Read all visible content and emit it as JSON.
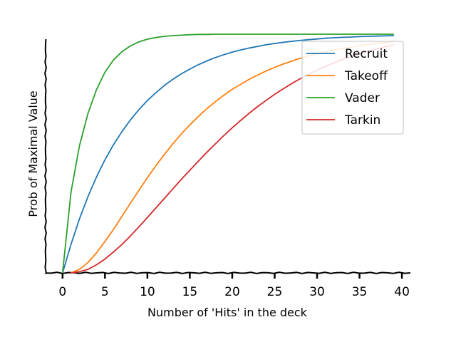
{
  "chart_data": {
    "type": "line",
    "title": "",
    "xlabel": "Number of 'Hits' in the deck",
    "ylabel": "Prob of Maximal Value",
    "xlim": [
      -2,
      41
    ],
    "ylim": [
      0,
      1
    ],
    "xticks": [
      0,
      5,
      10,
      15,
      20,
      25,
      30,
      35,
      40
    ],
    "grid": false,
    "legend_position": "top-right",
    "series": [
      {
        "name": "Recruit",
        "color": "#1f77b4",
        "x": [
          0,
          1,
          2,
          3,
          4,
          5,
          6,
          7,
          8,
          9,
          10,
          11,
          12,
          13,
          14,
          15,
          16,
          17,
          18,
          19,
          20,
          21,
          22,
          23,
          24,
          25,
          26,
          27,
          28,
          29,
          30,
          31,
          32,
          33,
          34,
          35,
          36,
          37,
          38,
          39
        ],
        "y": [
          0,
          0.12,
          0.227,
          0.32,
          0.402,
          0.474,
          0.537,
          0.592,
          0.641,
          0.684,
          0.722,
          0.755,
          0.785,
          0.811,
          0.834,
          0.854,
          0.872,
          0.888,
          0.902,
          0.914,
          0.925,
          0.934,
          0.942,
          0.949,
          0.956,
          0.961,
          0.966,
          0.97,
          0.974,
          0.977,
          0.98,
          0.983,
          0.985,
          0.987,
          0.988,
          0.99,
          0.991,
          0.992,
          0.993,
          0.994
        ]
      },
      {
        "name": "Takeoff",
        "color": "#ff7f0e",
        "x": [
          1,
          2,
          3,
          4,
          5,
          6,
          7,
          8,
          9,
          10,
          11,
          12,
          13,
          14,
          15,
          16,
          17,
          18,
          19,
          20,
          21,
          22,
          23,
          24,
          25,
          26,
          27,
          28,
          29,
          30,
          31,
          32,
          33,
          34,
          35,
          36,
          37,
          38,
          39
        ],
        "y": [
          0,
          0.015,
          0.044,
          0.084,
          0.132,
          0.182,
          0.237,
          0.292,
          0.346,
          0.399,
          0.449,
          0.496,
          0.541,
          0.582,
          0.62,
          0.655,
          0.688,
          0.717,
          0.744,
          0.769,
          0.79,
          0.811,
          0.829,
          0.846,
          0.861,
          0.875,
          0.887,
          0.899,
          0.909,
          0.918,
          0.926,
          0.934,
          0.94,
          0.946,
          0.952,
          0.957,
          0.961,
          0.965,
          0.969
        ]
      },
      {
        "name": "Vader",
        "color": "#2ca02c",
        "x": [
          0,
          1,
          2,
          3,
          4,
          5,
          6,
          7,
          8,
          9,
          10,
          11,
          12,
          13,
          14,
          15,
          16,
          17,
          18,
          19,
          20,
          21,
          22,
          23,
          24,
          25,
          26,
          27,
          28,
          29,
          30,
          31,
          32,
          33,
          34,
          35,
          36,
          37,
          38,
          39
        ],
        "y": [
          0,
          0.34,
          0.534,
          0.669,
          0.768,
          0.841,
          0.892,
          0.927,
          0.951,
          0.968,
          0.979,
          0.986,
          0.991,
          0.994,
          0.996,
          0.998,
          0.999,
          0.999,
          1,
          1,
          1,
          1,
          1,
          1,
          1,
          1,
          1,
          1,
          1,
          1,
          1,
          1,
          1,
          1,
          1,
          1,
          1,
          1,
          1,
          1
        ]
      },
      {
        "name": "Tarkin",
        "color": "#d62728",
        "x": [
          1,
          2,
          3,
          4,
          5,
          6,
          7,
          8,
          9,
          10,
          11,
          12,
          13,
          14,
          15,
          16,
          17,
          18,
          19,
          20,
          21,
          22,
          23,
          24,
          25,
          26,
          27,
          28,
          29,
          30,
          31,
          32,
          33,
          34,
          35,
          36,
          37,
          38,
          39
        ],
        "y": [
          0,
          0.005,
          0.015,
          0.034,
          0.058,
          0.088,
          0.119,
          0.155,
          0.193,
          0.232,
          0.272,
          0.312,
          0.352,
          0.392,
          0.43,
          0.468,
          0.505,
          0.54,
          0.575,
          0.608,
          0.639,
          0.669,
          0.697,
          0.723,
          0.748,
          0.771,
          0.793,
          0.813,
          0.832,
          0.849,
          0.865,
          0.88,
          0.894,
          0.907,
          0.918,
          0.929,
          0.938,
          0.947,
          0.955
        ]
      }
    ]
  }
}
